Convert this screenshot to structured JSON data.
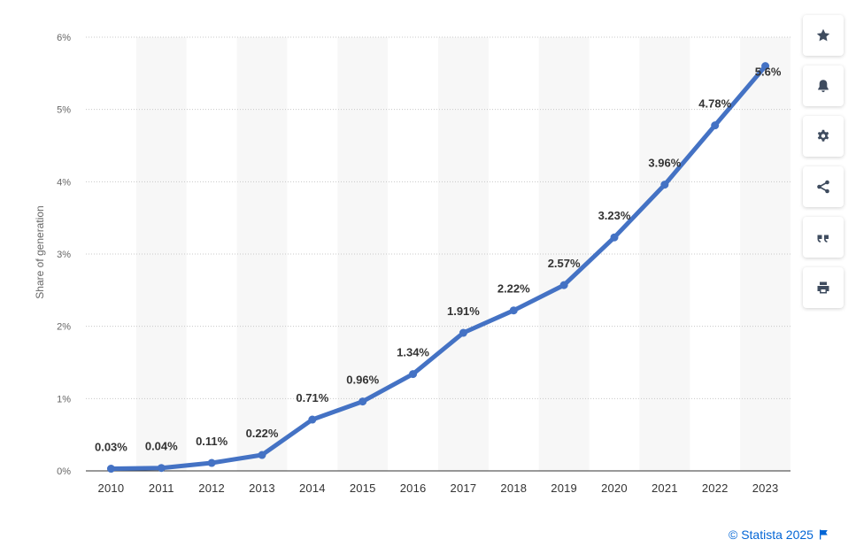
{
  "chart_data": {
    "type": "line",
    "x": [
      "2010",
      "2011",
      "2012",
      "2013",
      "2014",
      "2015",
      "2016",
      "2017",
      "2018",
      "2019",
      "2020",
      "2021",
      "2022",
      "2023"
    ],
    "values": [
      0.03,
      0.04,
      0.11,
      0.22,
      0.71,
      0.96,
      1.34,
      1.91,
      2.22,
      2.57,
      3.23,
      3.96,
      4.78,
      5.6
    ],
    "data_labels": [
      "0.03%",
      "0.04%",
      "0.11%",
      "0.22%",
      "0.71%",
      "0.96%",
      "1.34%",
      "1.91%",
      "2.22%",
      "2.57%",
      "3.23%",
      "3.96%",
      "4.78%",
      "5.6%"
    ],
    "y_ticks": [
      0,
      1,
      2,
      3,
      4,
      5,
      6
    ],
    "y_tick_labels": [
      "0%",
      "1%",
      "2%",
      "3%",
      "4%",
      "5%",
      "6%"
    ],
    "ylim": [
      0,
      6
    ],
    "xlabel": "",
    "ylabel": "Share of generation",
    "title": "",
    "series_color": "#4472c4",
    "grid": true
  },
  "toolbar": {
    "items": [
      {
        "name": "favorite",
        "icon": "star-icon"
      },
      {
        "name": "notification",
        "icon": "bell-icon"
      },
      {
        "name": "settings",
        "icon": "gear-icon"
      },
      {
        "name": "share",
        "icon": "share-icon"
      },
      {
        "name": "cite",
        "icon": "quote-icon"
      },
      {
        "name": "print",
        "icon": "print-icon"
      }
    ]
  },
  "footer": {
    "credit": "© Statista 2025",
    "flag_icon": "flag-icon"
  }
}
